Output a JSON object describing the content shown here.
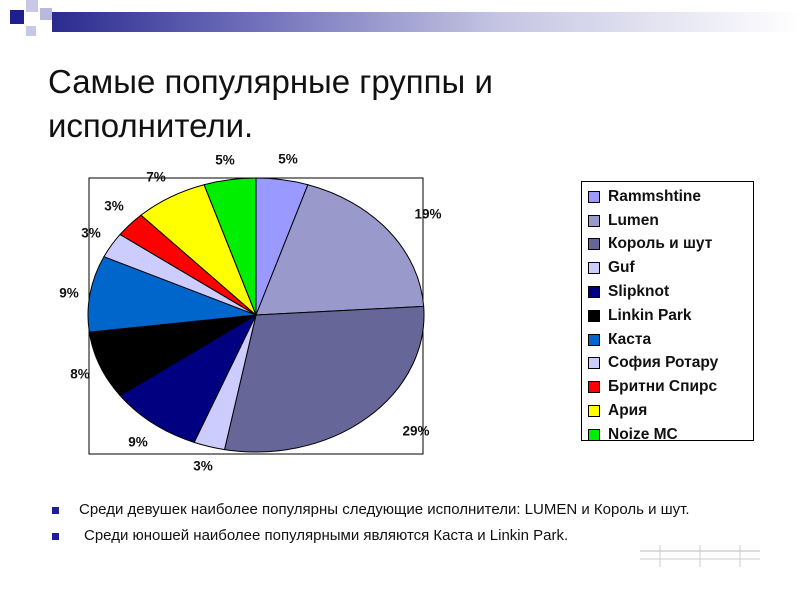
{
  "slide": {
    "title_line1": "Самые популярные группы и",
    "title_line2": "исполнители.",
    "bullets": [
      "Среди девушек наиболее популярны следующие исполнители: LUMEN и Король и шут.",
      "Среди юношей наиболее популярными являются Каста и Linkin Park."
    ]
  },
  "chart_data": {
    "type": "pie",
    "title": "",
    "legend_position": "right",
    "categories": [
      "Rammshtine",
      "Lumen",
      "Король и шут",
      "Guf",
      "Slipknot",
      "Linkin Park",
      "Каста",
      "София Ротару",
      "Бритни Спирс",
      "Ария",
      "Noize MC"
    ],
    "values": [
      5,
      19,
      29,
      3,
      9,
      8,
      9,
      3,
      3,
      7,
      5
    ],
    "labels": [
      "5%",
      "19%",
      "29%",
      "3%",
      "9%",
      "8%",
      "9%",
      "3%",
      "3%",
      "7%",
      "5%"
    ],
    "colors": [
      "#9999ff",
      "#9999cc",
      "#666699",
      "#ccccff",
      "#000080",
      "#000000",
      "#0066cc",
      "#ccccff",
      "#ff0000",
      "#ffff00",
      "#00ee00"
    ]
  }
}
